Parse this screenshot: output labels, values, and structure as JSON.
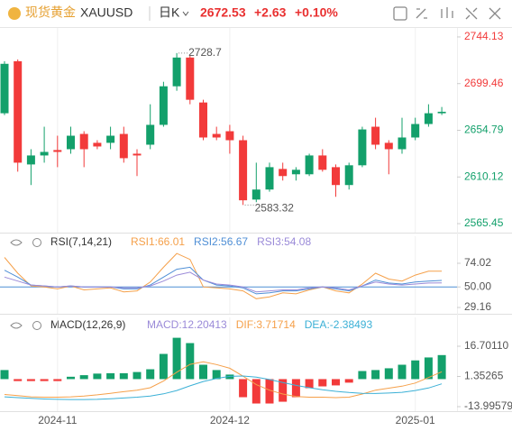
{
  "header": {
    "name": "现货黄金",
    "symbol": "XAUUSD",
    "period": "日K",
    "price": "2672.53",
    "change": "+2.63",
    "change_pct": "+0.10%"
  },
  "chart_data": [
    {
      "type": "candlestick",
      "categories": [
        null,
        null,
        null,
        null,
        "2024-11",
        null,
        null,
        null,
        null,
        null,
        null,
        null,
        null,
        null,
        null,
        null,
        null,
        "2024-12",
        null,
        null,
        null,
        null,
        null,
        null,
        null,
        null,
        null,
        null,
        null,
        null,
        null,
        "2025-01",
        null,
        null
      ],
      "open": [
        2671.1,
        2720.9,
        2622.1,
        2630.7,
        2635.9,
        2636.7,
        2651.3,
        2642.8,
        2642.8,
        2651.3,
        2632.4,
        2641.0,
        2660.0,
        2696.9,
        2724.4,
        2681.4,
        2651.3,
        2653.9,
        2645.3,
        2588.5,
        2598.1,
        2617.8,
        2612.7,
        2612.7,
        2630.7,
        2619.5,
        2602.4,
        2621.3,
        2658.2,
        2642.8,
        2636.7,
        2647.9,
        2660.8,
        2671.1
      ],
      "high": [
        2720.9,
        2722.6,
        2636.7,
        2658.2,
        2649.6,
        2658.2,
        2653.9,
        2645.3,
        2658.2,
        2658.2,
        2636.7,
        2679.7,
        2701.2,
        2728.7,
        2726.26,
        2684.0,
        2658.2,
        2660.0,
        2649.6,
        2623.8,
        2623.8,
        2623.8,
        2619.5,
        2632.4,
        2636.7,
        2622.1,
        2623.8,
        2658.2,
        2666.8,
        2645.3,
        2666.8,
        2666.8,
        2679.7,
        2677.1
      ],
      "low": [
        2669.4,
        2615.2,
        2602.4,
        2623.8,
        2619.5,
        2632.4,
        2619.5,
        2636.7,
        2636.7,
        2623.8,
        2611.0,
        2636.7,
        2658.2,
        2692.6,
        2679.7,
        2645.3,
        2645.3,
        2632.4,
        2583.32,
        2586.0,
        2596.0,
        2606.7,
        2606.7,
        2611.0,
        2615.2,
        2591.2,
        2598.1,
        2619.5,
        2636.7,
        2612.7,
        2632.4,
        2645.3,
        2658.2,
        2669.4
      ],
      "close": [
        2718.4,
        2623.8,
        2630.7,
        2634.1,
        2634.1,
        2649.6,
        2636.7,
        2639.3,
        2649.6,
        2628.1,
        2630.7,
        2660.0,
        2696.9,
        2724.4,
        2684.0,
        2647.9,
        2647.9,
        2645.3,
        2587.8,
        2598.1,
        2619.5,
        2611.0,
        2617.0,
        2630.7,
        2617.0,
        2602.4,
        2621.3,
        2655.6,
        2641.0,
        2636.7,
        2647.9,
        2660.8,
        2671.1,
        2672.53
      ],
      "up_color": "#13a06b",
      "down_color": "#f23a3a",
      "ylim": [
        2556.86,
        2752.72
      ],
      "yticks": [
        2565.45,
        2610.12,
        2654.79,
        2699.46,
        2744.13
      ]
    },
    {
      "type": "line",
      "title": "RSI(7,14,21)",
      "series": [
        {
          "name": "RSI1:66.01",
          "color": "#f5a04a",
          "values": [
            80,
            64,
            51,
            50,
            48,
            51,
            47,
            48,
            49,
            45,
            46,
            55,
            70,
            84,
            78,
            50,
            49,
            48,
            46,
            38,
            40,
            44,
            43,
            47,
            50,
            46,
            44,
            53,
            64,
            58,
            56,
            62,
            66,
            66.01
          ]
        },
        {
          "name": "RSI2:56.67",
          "color": "#4f8fd6",
          "values": [
            67,
            60,
            52,
            51,
            50,
            51,
            50,
            50,
            50,
            48,
            48,
            52,
            60,
            68,
            70,
            57,
            52,
            51,
            49,
            43,
            44,
            46,
            46,
            48,
            50,
            48,
            46,
            51,
            57,
            54,
            53,
            55,
            56,
            56.67
          ]
        },
        {
          "name": "RSI3:54.08",
          "color": "#9a8ad8",
          "values": [
            60,
            56,
            52,
            51,
            50,
            51,
            50,
            50,
            50,
            49,
            49,
            51,
            56,
            62,
            65,
            57,
            53,
            52,
            50,
            45,
            46,
            47,
            47,
            49,
            50,
            49,
            47,
            51,
            55,
            53,
            52,
            53,
            54,
            54.08
          ]
        }
      ],
      "reference_line": 50,
      "ylim": [
        22.75,
        101.5
      ],
      "yticks": [
        29.16,
        {
          "value": 50,
          "label": "50.00"
        },
        74.02
      ]
    },
    {
      "type": "macd",
      "title": "MACD(12,26,9)",
      "series": [
        {
          "name": "MACD:12.20413",
          "color": "#9a8ad8",
          "kind": "bar",
          "values": [
            4.6,
            -1,
            -1,
            -1,
            -1,
            1.2,
            2,
            2.8,
            3,
            3,
            3.6,
            5,
            12.8,
            21,
            18.3,
            7.3,
            4.6,
            2.3,
            -9.2,
            -12.4,
            -12.4,
            -11.5,
            -9.2,
            -4.6,
            -3.7,
            -3.2,
            -1.8,
            4.1,
            4.6,
            5.5,
            7.3,
            9.5,
            11,
            12.20413
          ]
        },
        {
          "name": "DIF:3.71714",
          "color": "#f5a04a",
          "values": [
            -7.8,
            -8.4,
            -9,
            -9.2,
            -9.2,
            -9,
            -8.6,
            -8,
            -7.2,
            -6.4,
            -5.6,
            -4.4,
            -1,
            3.5,
            7.5,
            8.8,
            7.4,
            5.5,
            1.5,
            -2.8,
            -5.6,
            -7.6,
            -8.8,
            -9.2,
            -9.2,
            -9.4,
            -9.2,
            -7.6,
            -5.6,
            -4.6,
            -3.6,
            -2,
            0.8,
            3.71714
          ]
        },
        {
          "name": "DEA:-2.38493",
          "color": "#3bb0d6",
          "values": [
            -9,
            -9.4,
            -9.8,
            -10.1,
            -10.3,
            -10.4,
            -10.4,
            -10.3,
            -10,
            -9.6,
            -9.2,
            -8.6,
            -7.5,
            -5.8,
            -3.4,
            -1.2,
            0.3,
            1.4,
            1.6,
            1,
            -0.2,
            -1.7,
            -3.2,
            -4.4,
            -5.4,
            -6.2,
            -6.8,
            -7.2,
            -7.3,
            -7.1,
            -6.7,
            -5.8,
            -4.5,
            -2.38493
          ]
        }
      ],
      "ylim": [
        -16.29,
        31.36
      ],
      "yticks": [
        -13.99579,
        1.35265,
        {
          "value": 16.7011,
          "label": "16.70110"
        }
      ]
    }
  ]
}
